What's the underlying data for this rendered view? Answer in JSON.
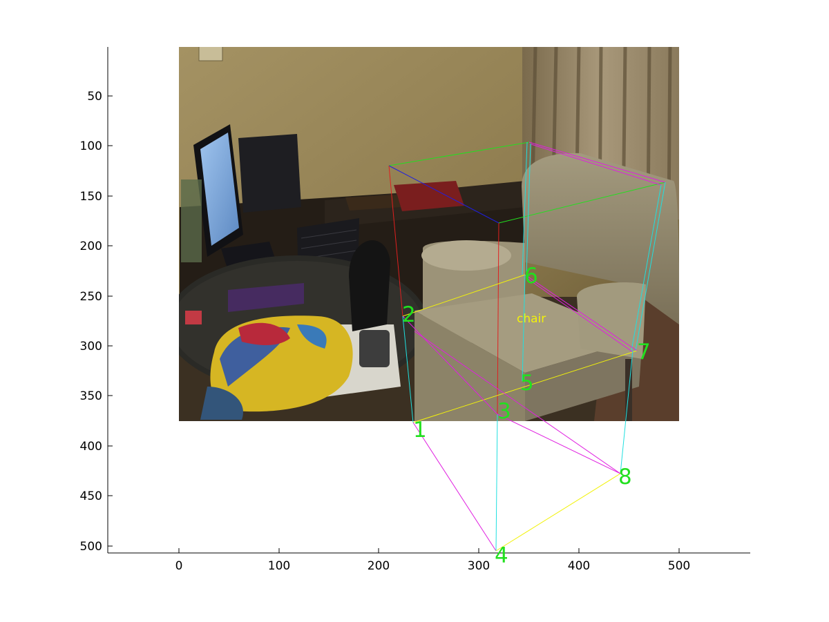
{
  "figure": {
    "x_ticks": [
      "0",
      "100",
      "200",
      "300",
      "400",
      "500"
    ],
    "y_ticks": [
      "50",
      "100",
      "150",
      "200",
      "250",
      "300",
      "350",
      "400",
      "450",
      "500"
    ],
    "object_label": "chair",
    "corner_labels": [
      "1",
      "2",
      "3",
      "4",
      "5",
      "6",
      "7",
      "8"
    ]
  },
  "colors": {
    "corner_label": "#22e01f",
    "object_label": "#f2f20a",
    "edge_green": "#22e01f",
    "edge_magenta": "#e01fe0",
    "edge_cyan": "#1fe0e0",
    "edge_yellow": "#f2f20a",
    "edge_red": "#e01f1f",
    "edge_blue": "#1f1fe0"
  }
}
